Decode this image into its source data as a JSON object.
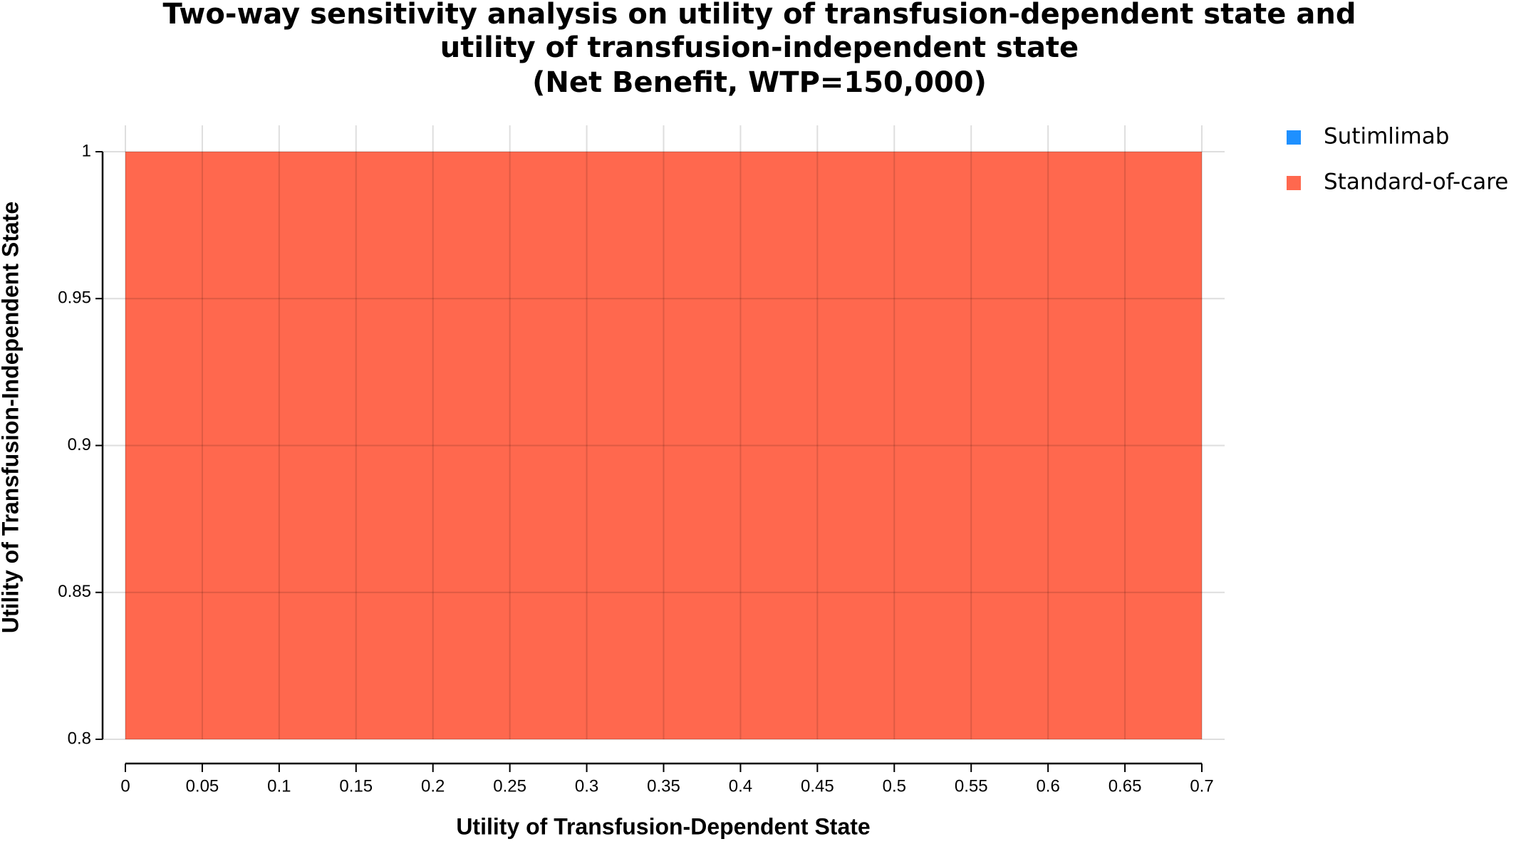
{
  "chart_data": {
    "type": "region",
    "title": [
      "Two-way sensitivity analysis on utility of transfusion-dependent state and",
      "utility of transfusion-independent state",
      "(Net Benefit, WTP=150,000)"
    ],
    "x_label": "Utility of Transfusion-Dependent State",
    "y_label": "Utility of Transfusion-Independent State",
    "series": [
      {
        "name": "Sutimlimab",
        "color": "#1e90ff"
      },
      {
        "name": "Standard-of-care",
        "color": "#ff684e",
        "x": [
          0,
          0.7
        ],
        "y": [
          0.8,
          1
        ]
      }
    ],
    "xlim": [
      0,
      0.7
    ],
    "xticks": [
      0,
      0.05,
      0.1,
      0.15,
      0.2,
      0.25,
      0.3,
      0.35,
      0.4,
      0.45,
      0.5,
      0.55,
      0.6,
      0.65,
      0.7
    ],
    "ylim": [
      0.8,
      1
    ],
    "yticks": [
      0.8,
      0.85,
      0.9,
      0.95,
      1
    ],
    "grid": true,
    "legend": "right"
  }
}
